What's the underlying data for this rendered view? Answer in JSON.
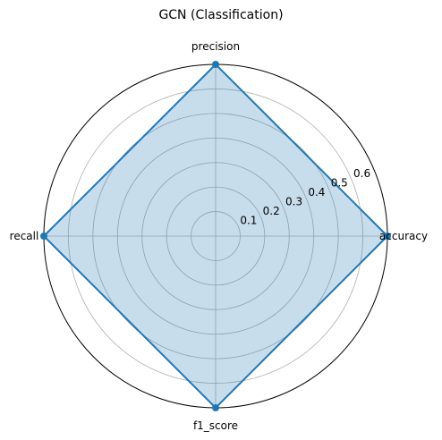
{
  "chart_data": {
    "type": "radar",
    "title": "GCN (Classification)",
    "categories": [
      "accuracy",
      "precision",
      "recall",
      "f1_score"
    ],
    "series": [
      {
        "values": [
          0.7,
          0.7,
          0.7,
          0.7
        ]
      }
    ],
    "rlim": [
      0,
      0.7
    ],
    "rticks": [
      0.1,
      0.2,
      0.3,
      0.4,
      0.5,
      0.6
    ],
    "rtick_labels": [
      "0.1",
      "0.2",
      "0.3",
      "0.4",
      "0.5",
      "0.6"
    ],
    "grid": true,
    "colors": {
      "line": "#1f77b4",
      "fill": "#1f77b4",
      "grid": "#b0b0b0",
      "frame": "#000000"
    }
  }
}
